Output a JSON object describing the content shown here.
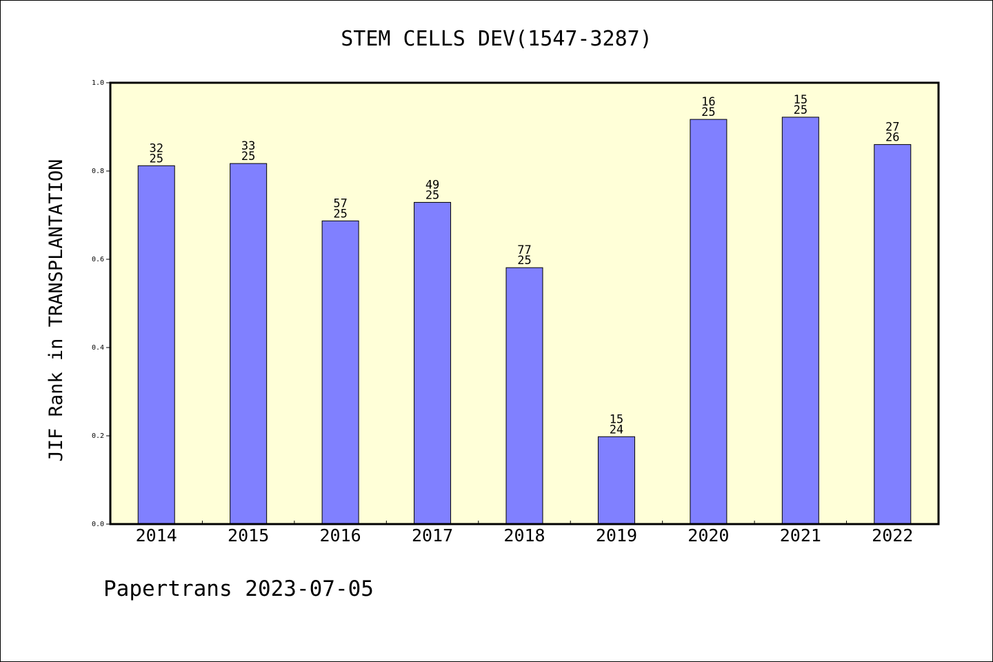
{
  "chart_data": {
    "type": "bar",
    "title": "STEM CELLS DEV(1547-3287)",
    "xlabel": "",
    "ylabel": "JIF Rank in TRANSPLANTATION",
    "ylim": [
      0,
      1.0
    ],
    "yticks": [
      "0.0",
      "0.2",
      "0.4",
      "0.6",
      "0.8",
      "1.0"
    ],
    "categories": [
      "2014",
      "2015",
      "2016",
      "2017",
      "2018",
      "2019",
      "2020",
      "2021",
      "2022"
    ],
    "values": [
      0.812,
      0.817,
      0.687,
      0.729,
      0.581,
      0.198,
      0.917,
      0.922,
      0.86
    ],
    "labels": [
      [
        "32",
        "25"
      ],
      [
        "33",
        "25"
      ],
      [
        "57",
        "25"
      ],
      [
        "49",
        "25"
      ],
      [
        "77",
        "25"
      ],
      [
        "15",
        "24"
      ],
      [
        "16",
        "25"
      ],
      [
        "15",
        "25"
      ],
      [
        "27",
        "26"
      ]
    ],
    "grid": false,
    "colors": {
      "bar": "#8080ff",
      "plot_bg": "#ffffd8"
    }
  },
  "footer": "Papertrans 2023-07-05"
}
